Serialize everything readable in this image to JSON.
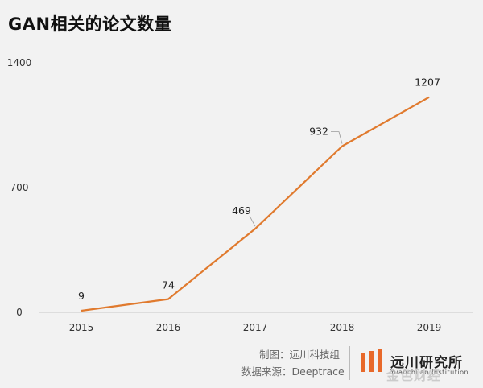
{
  "title": "GAN相关的论文数量",
  "chart_data": {
    "type": "line",
    "title": "GAN相关的论文数量",
    "xlabel": "",
    "ylabel": "",
    "categories": [
      "2015",
      "2016",
      "2017",
      "2018",
      "2019"
    ],
    "values": [
      9,
      74,
      469,
      932,
      1207
    ],
    "data_labels": [
      "9",
      "74",
      "469",
      "932",
      "1207"
    ],
    "ylim": [
      0,
      1400
    ],
    "yticks": [
      0,
      700,
      1400
    ],
    "ytick_labels": [
      "0",
      "700",
      "1400"
    ],
    "grid": false,
    "legend": "none",
    "line_color": "#e07a2e"
  },
  "source": {
    "made_by": "制图：远川科技组",
    "data_source": "数据来源：Deeptrace"
  },
  "logo": {
    "name": "远川研究所",
    "english": "Yuanchuan Institution",
    "mark_color": "#e8692a"
  },
  "watermark": "金色财经"
}
